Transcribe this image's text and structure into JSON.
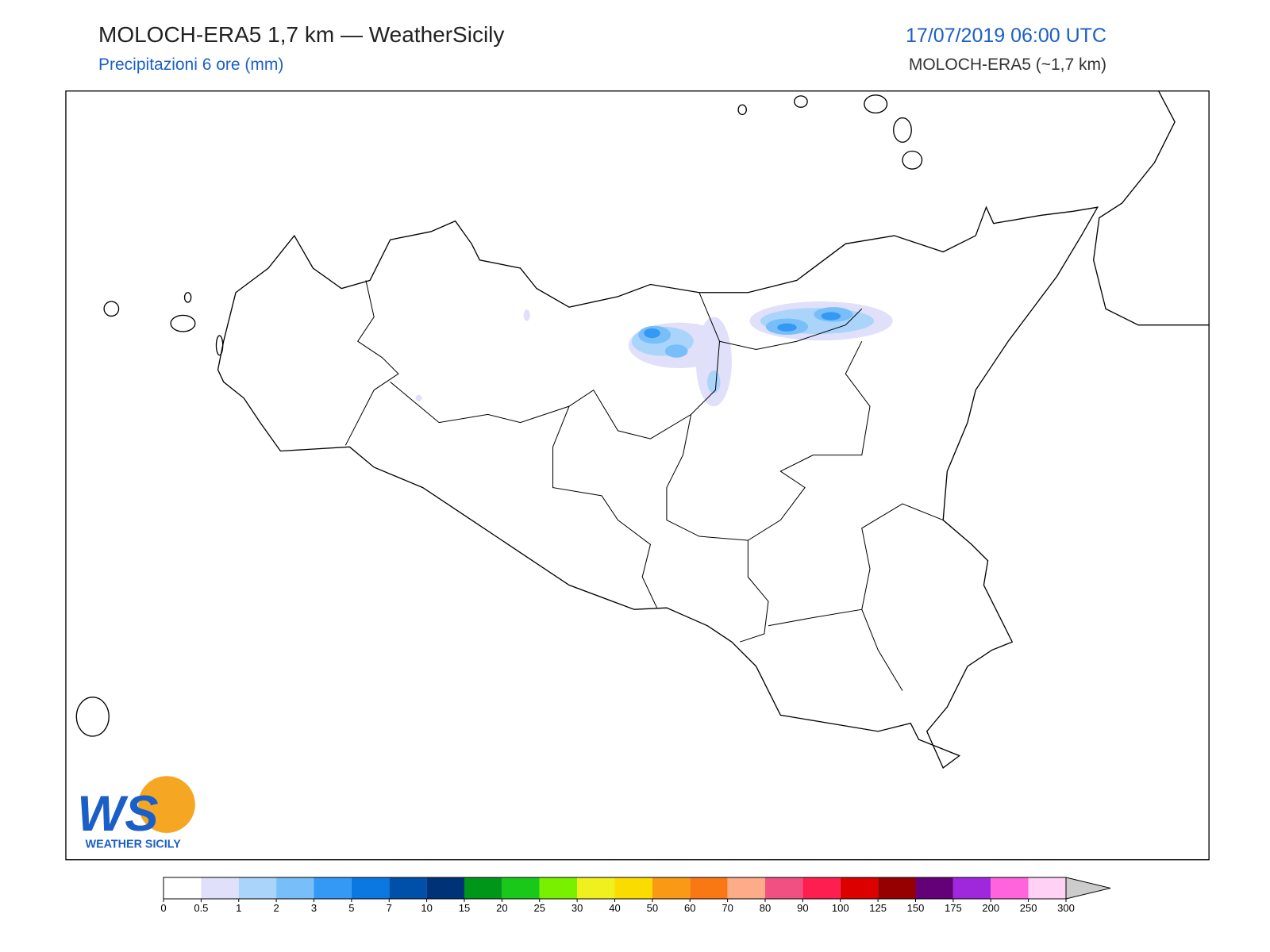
{
  "header": {
    "title": "MOLOCH-ERA5 1,7 km — WeatherSicily",
    "subtitle": "Precipitazioni 6 ore (mm)",
    "datetime": "17/07/2019 06:00 UTC",
    "model": "MOLOCH-ERA5 (~1,7 km)"
  },
  "logo": {
    "mark": "WS",
    "text": "WEATHER SICILY"
  },
  "colorbar": {
    "bounds": [
      0,
      0.5,
      1,
      2,
      3,
      5,
      7,
      10,
      15,
      20,
      25,
      30,
      40,
      50,
      60,
      70,
      80,
      90,
      100,
      125,
      150,
      175,
      200,
      250,
      300
    ],
    "colors": [
      "#ffffff",
      "#e0e0fa",
      "#aad4fa",
      "#78bef8",
      "#3399f5",
      "#0a78e0",
      "#0050aa",
      "#003278",
      "#009619",
      "#19c819",
      "#78f000",
      "#f0f01e",
      "#fadc00",
      "#fa9a14",
      "#fa7814",
      "#fcac88",
      "#f05082",
      "#ff1e50",
      "#dc0000",
      "#960000",
      "#640078",
      "#a028dc",
      "#ff64dc",
      "#ffd2f5"
    ],
    "extend_color": "#cccccc"
  }
}
